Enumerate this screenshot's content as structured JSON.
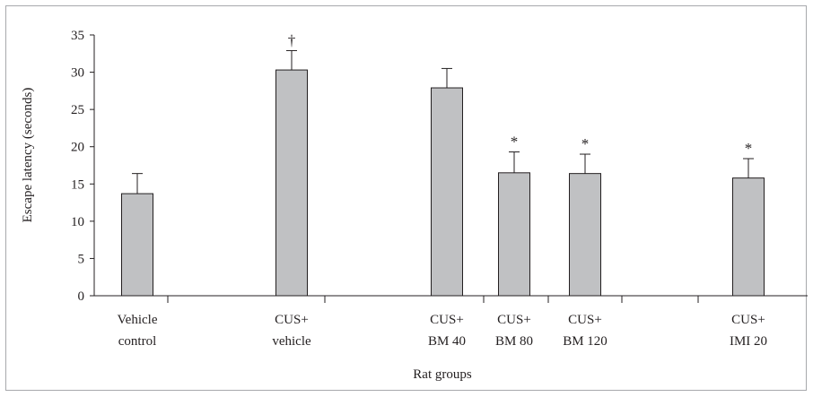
{
  "chart_data": {
    "type": "bar",
    "title": "",
    "xlabel": "Rat groups",
    "ylabel": "Escape latency (seconds)",
    "ylim": [
      0,
      35
    ],
    "yticks": [
      0,
      5,
      10,
      15,
      20,
      25,
      30,
      35
    ],
    "grid": false,
    "legend": "none",
    "bar_color": "#c0c1c3",
    "categories": [
      {
        "line1": "Vehicle",
        "line2": "control",
        "value": 13.7,
        "error": 2.7,
        "marker": ""
      },
      {
        "line1": "CUS+",
        "line2": "vehicle",
        "value": 30.3,
        "error": 2.6,
        "marker": "†"
      },
      {
        "line1": "CUS+",
        "line2": "BM 40",
        "value": 27.9,
        "error": 2.6,
        "marker": ""
      },
      {
        "line1": "CUS+",
        "line2": "BM 80",
        "value": 16.5,
        "error": 2.8,
        "marker": "*"
      },
      {
        "line1": "CUS+",
        "line2": "BM 120",
        "value": 16.4,
        "error": 2.6,
        "marker": "*"
      },
      {
        "line1": "CUS+",
        "line2": "IMI 20",
        "value": 15.8,
        "error": 2.6,
        "marker": "*"
      }
    ]
  }
}
